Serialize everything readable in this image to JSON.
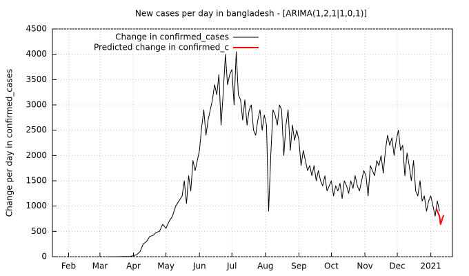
{
  "chart_data": {
    "type": "line",
    "title": "New cases per day in bangladesh -  [ARIMA(1,2,1|1,0,1)]",
    "y_label": "Change per day in confirmed_cases",
    "xlim": [
      16,
      386
    ],
    "ylim": [
      0,
      4500
    ],
    "xticks": [
      {
        "value": 31,
        "label": "Feb"
      },
      {
        "value": 60,
        "label": "Mar"
      },
      {
        "value": 91,
        "label": "Apr"
      },
      {
        "value": 121,
        "label": "May"
      },
      {
        "value": 152,
        "label": "Jun"
      },
      {
        "value": 182,
        "label": "Jul"
      },
      {
        "value": 213,
        "label": "Aug"
      },
      {
        "value": 244,
        "label": "Sep"
      },
      {
        "value": 274,
        "label": "Oct"
      },
      {
        "value": 305,
        "label": "Nov"
      },
      {
        "value": 335,
        "label": "Dec"
      },
      {
        "value": 366,
        "label": "2021"
      }
    ],
    "yticks": [
      0,
      500,
      1000,
      1500,
      2000,
      2500,
      3000,
      3500,
      4000,
      4500
    ],
    "grid": true,
    "legend": "top-left",
    "series": [
      {
        "name": "Change in confirmed_cases",
        "color": "#000000",
        "x": [
          68,
          75,
          82,
          88,
          91,
          94,
          97,
          100,
          103,
          106,
          109,
          112,
          115,
          118,
          121,
          124,
          127,
          130,
          133,
          136,
          138,
          140,
          142,
          144,
          146,
          148,
          150,
          152,
          154,
          156,
          158,
          160,
          162,
          164,
          166,
          168,
          170,
          172,
          174,
          176,
          178,
          180,
          182,
          184,
          186,
          188,
          190,
          192,
          194,
          196,
          198,
          200,
          202,
          204,
          206,
          208,
          210,
          212,
          214,
          216,
          218,
          220,
          222,
          224,
          226,
          228,
          230,
          232,
          234,
          236,
          238,
          240,
          242,
          244,
          246,
          248,
          250,
          252,
          254,
          256,
          258,
          260,
          262,
          264,
          266,
          268,
          270,
          272,
          274,
          276,
          278,
          280,
          282,
          284,
          286,
          288,
          290,
          292,
          294,
          296,
          298,
          300,
          302,
          304,
          306,
          308,
          310,
          312,
          314,
          316,
          318,
          320,
          322,
          324,
          326,
          328,
          330,
          332,
          334,
          336,
          338,
          340,
          342,
          344,
          346,
          348,
          350,
          352,
          354,
          356,
          358,
          360,
          362,
          364,
          366,
          368,
          370,
          372,
          374
        ],
        "values": [
          0,
          0,
          3,
          5,
          20,
          40,
          100,
          250,
          300,
          400,
          420,
          480,
          500,
          640,
          560,
          700,
          800,
          1000,
          1100,
          1200,
          1500,
          1050,
          1600,
          1300,
          1900,
          1700,
          1900,
          2100,
          2550,
          2900,
          2400,
          2700,
          2900,
          3100,
          3400,
          3200,
          3600,
          2600,
          3250,
          4000,
          3400,
          3600,
          3700,
          3000,
          4050,
          3200,
          3100,
          2700,
          3100,
          2600,
          2900,
          3000,
          2500,
          2400,
          2700,
          2900,
          2500,
          2800,
          2600,
          900,
          2000,
          2900,
          2800,
          2600,
          3000,
          2900,
          2000,
          2600,
          2900,
          2100,
          2600,
          2300,
          2500,
          2300,
          1800,
          2100,
          1900,
          1700,
          1800,
          1600,
          1800,
          1500,
          1700,
          1500,
          1400,
          1600,
          1300,
          1400,
          1500,
          1200,
          1400,
          1300,
          1450,
          1150,
          1500,
          1400,
          1250,
          1500,
          1350,
          1600,
          1400,
          1300,
          1500,
          1700,
          1600,
          1200,
          1800,
          1700,
          1600,
          1900,
          1800,
          2000,
          1650,
          2100,
          2400,
          2200,
          2350,
          2000,
          2300,
          2500,
          2100,
          2200,
          1600,
          2050,
          1800,
          1500,
          1900,
          1300,
          1200,
          1500,
          1100,
          1200,
          900,
          1100,
          1200,
          1000,
          800,
          1100,
          900
        ]
      },
      {
        "name": "Predicted change in confirmed_c",
        "color": "#ff0000",
        "x": [
          371,
          372,
          373,
          374,
          375,
          376,
          377,
          378
        ],
        "values": [
          950,
          900,
          850,
          800,
          640,
          700,
          780,
          820
        ]
      }
    ]
  }
}
